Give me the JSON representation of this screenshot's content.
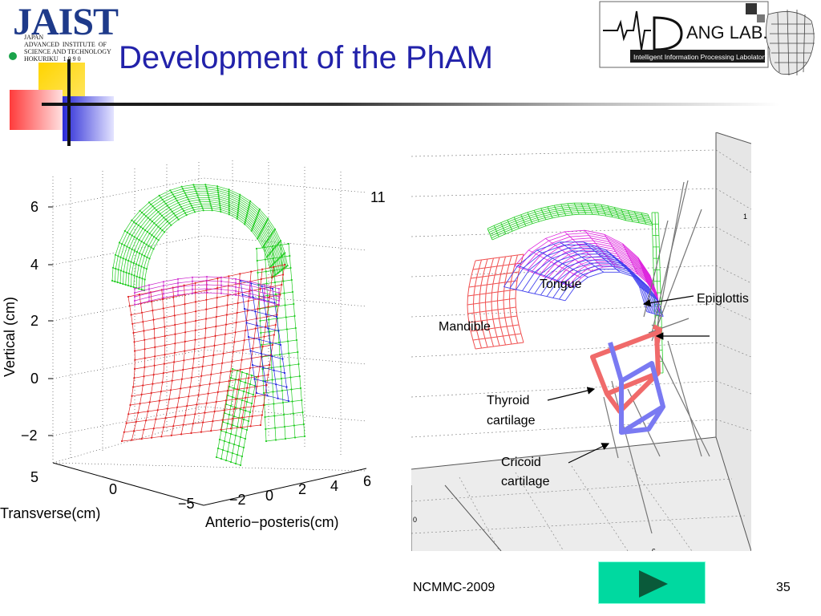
{
  "header": {
    "title": "Development of the PhAM",
    "jaist_logo": {
      "word": "JAIST",
      "sub_lines": "JAPAN\nADVANCED  INSTITUTE  OF\nSCIENCE AND TECHNOLOGY\nHOKURIKU   1 9 9 0"
    },
    "dang_logo": {
      "word": "ANG LAB.",
      "subtitle": "Intelligent Information Processing Labolatory"
    }
  },
  "left_figure": {
    "ylabel": "Vertical (cm)",
    "xlabel_transverse": "Transverse(cm)",
    "xlabel_ap": "Anterio−posteris(cm)",
    "y_ticks": [
      "6",
      "4",
      "2",
      "0",
      "−2"
    ],
    "transverse_ticks": [
      "5",
      "0",
      "−5"
    ],
    "ap_ticks": [
      "−2",
      "0",
      "2",
      "4",
      "6"
    ],
    "corner_label": "11",
    "colors": {
      "green": "#22cc22",
      "red": "#e02020",
      "blue": "#2222dd",
      "magenta": "#cc22cc"
    }
  },
  "right_figure": {
    "labels": {
      "tongue": "Tongue",
      "epiglottis": "Epiglottis",
      "mandible": "Mandible",
      "thyroid": "Thyroid\ncartilage",
      "cricoid": "Cricoid\ncartilage"
    },
    "axis_marks": {
      "right": "1",
      "left_bottom": "0",
      "bottom": "c"
    },
    "colors": {
      "red": "#f05050",
      "blue": "#6a6af0",
      "green": "#22cc22",
      "magenta": "#dd22dd",
      "gray": "#777777"
    }
  },
  "footer": {
    "conference": "NCMMC-2009",
    "page_number": "35",
    "next_button_icon": "play-arrow-icon",
    "next_button_color": "#00d9a0"
  }
}
